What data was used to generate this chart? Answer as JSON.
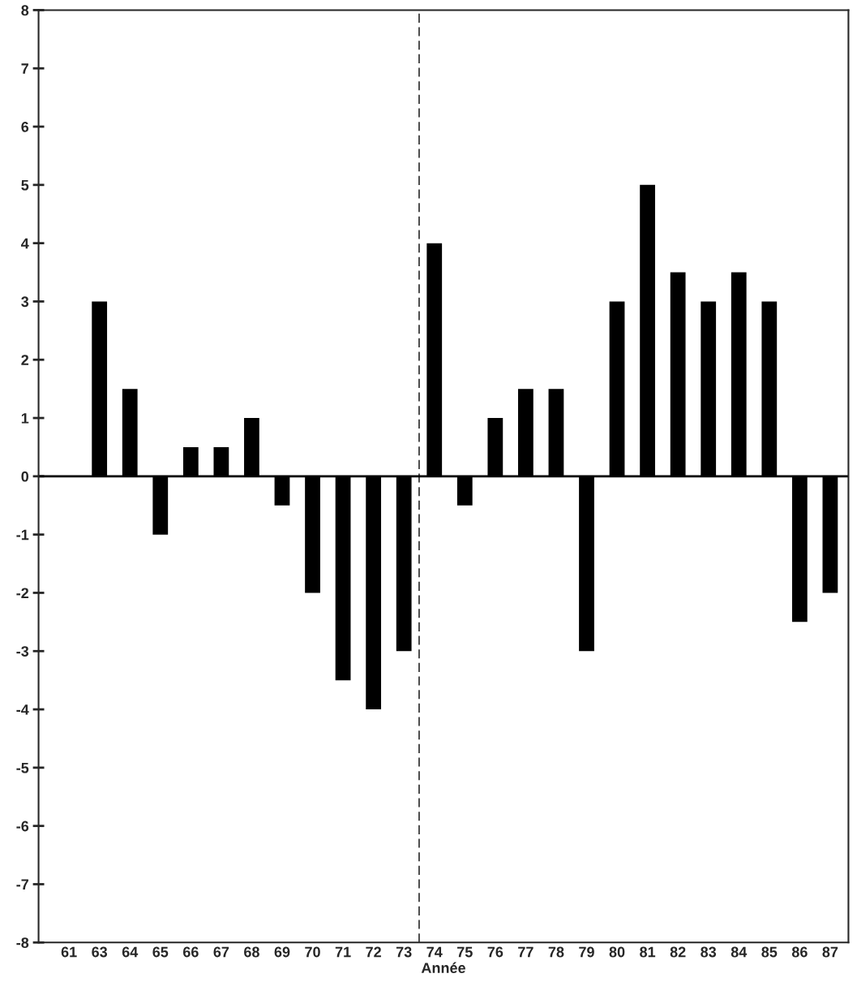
{
  "chart_data": {
    "type": "bar",
    "xlabel": "Année",
    "categories": [
      "61",
      "63",
      "64",
      "65",
      "66",
      "67",
      "68",
      "69",
      "70",
      "71",
      "72",
      "73",
      "74",
      "75",
      "76",
      "77",
      "78",
      "79",
      "80",
      "81",
      "82",
      "83",
      "84",
      "85",
      "86",
      "87"
    ],
    "values": [
      null,
      3,
      1.5,
      -1,
      0.5,
      0.5,
      1,
      -0.5,
      -2,
      -3.5,
      -4,
      -3,
      4,
      -0.5,
      1,
      1.5,
      1.5,
      -3,
      3,
      5,
      3.5,
      3,
      3.5,
      3,
      -2.5,
      -2
    ],
    "color": "#000000",
    "ref_lines": [
      {
        "axis": "x",
        "value": "74",
        "color": "#000000",
        "line_style": "dashed"
      }
    ],
    "ylim": [
      -8,
      8
    ],
    "yticks": [
      -8,
      -7,
      -6,
      -5,
      -4,
      -3,
      -2,
      -1,
      0,
      1,
      2,
      3,
      4,
      5,
      6,
      7,
      8
    ],
    "grid": false,
    "legend": false
  }
}
